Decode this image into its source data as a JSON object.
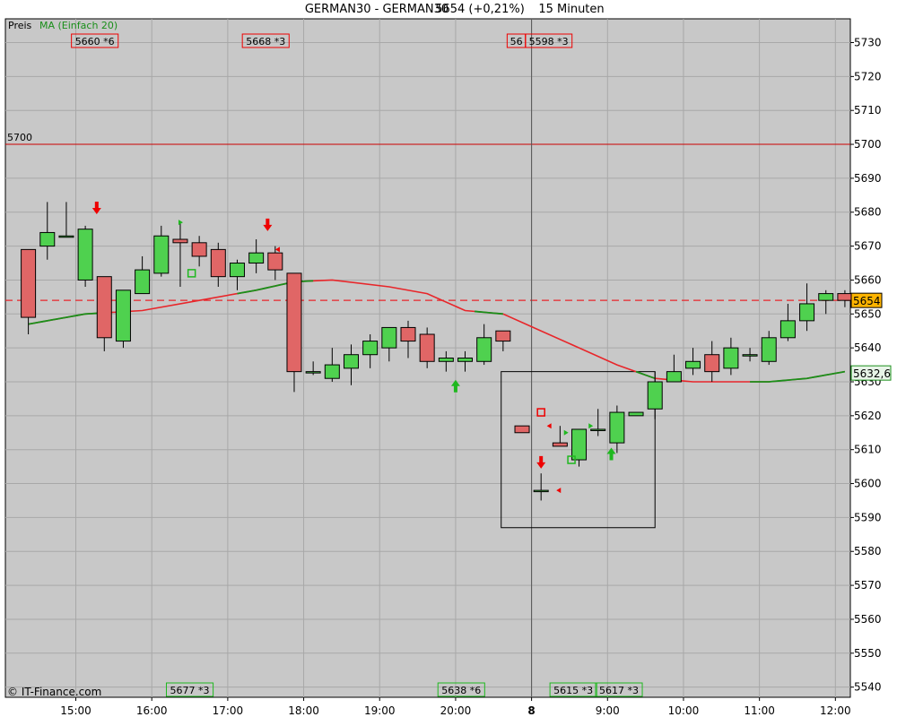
{
  "header": {
    "symbol": "GERMAN30 - GERMAN30",
    "price": "5654 (+0,21%)",
    "interval": "15 Minuten"
  },
  "legend": {
    "price_label": "Preis",
    "ma_label": "MA (Einfach 20)"
  },
  "copyright": "© IT-Finance.com",
  "chart_data": {
    "type": "candlestick",
    "ylim": [
      5537,
      5737
    ],
    "yticks": [
      5540,
      5550,
      5560,
      5570,
      5580,
      5590,
      5600,
      5610,
      5620,
      5630,
      5640,
      5650,
      5660,
      5670,
      5680,
      5690,
      5700,
      5710,
      5720,
      5730
    ],
    "xticks": [
      {
        "label": "15:00",
        "i": 2.5
      },
      {
        "label": "16:00",
        "i": 6.5
      },
      {
        "label": "17:00",
        "i": 10.5
      },
      {
        "label": "18:00",
        "i": 14.5
      },
      {
        "label": "19:00",
        "i": 18.5
      },
      {
        "label": "20:00",
        "i": 22.5
      },
      {
        "label": "8",
        "i": 26.5
      },
      {
        "label": "9:00",
        "i": 30.5
      },
      {
        "label": "10:00",
        "i": 34.5
      },
      {
        "label": "11:00",
        "i": 38.5
      },
      {
        "label": "12:00",
        "i": 42.5
      }
    ],
    "candles": [
      [
        5669,
        5669,
        5644,
        5649
      ],
      [
        5670,
        5683,
        5666,
        5674
      ],
      [
        5673,
        5683,
        5673,
        5673
      ],
      [
        5660,
        5676,
        5658,
        5675
      ],
      [
        5661,
        5661,
        5639,
        5643
      ],
      [
        5642,
        5657,
        5640,
        5657
      ],
      [
        5656,
        5667,
        5656,
        5663
      ],
      [
        5662,
        5676,
        5661,
        5673
      ],
      [
        5672,
        5677,
        5658,
        5671
      ],
      [
        5671,
        5673,
        5664,
        5667
      ],
      [
        5669,
        5671,
        5658,
        5661
      ],
      [
        5661,
        5666,
        5657,
        5665
      ],
      [
        5665,
        5672,
        5662,
        5668
      ],
      [
        5668,
        5670,
        5660,
        5663
      ],
      [
        5662,
        5662,
        5627,
        5633
      ],
      [
        5633,
        5636,
        5632,
        5633
      ],
      [
        5631,
        5640,
        5630,
        5635
      ],
      [
        5634,
        5641,
        5629,
        5638
      ],
      [
        5638,
        5644,
        5634,
        5642
      ],
      [
        5640,
        5646,
        5636,
        5646
      ],
      [
        5646,
        5648,
        5637,
        5642
      ],
      [
        5644,
        5646,
        5634,
        5636
      ],
      [
        5636,
        5639,
        5633,
        5637
      ],
      [
        5636,
        5639,
        5633,
        5637
      ],
      [
        5636,
        5647,
        5635,
        5643
      ],
      [
        5645,
        5645,
        5639,
        5642
      ],
      [
        5617,
        5617,
        5615,
        5615
      ],
      [
        5598,
        5603,
        5595,
        5598
      ],
      [
        5612,
        5617,
        5611,
        5611
      ],
      [
        5607,
        5615,
        5605,
        5616
      ],
      [
        5616,
        5622,
        5614,
        5616
      ],
      [
        5612,
        5623,
        5609,
        5621
      ],
      [
        5620,
        5621,
        5620,
        5621
      ],
      [
        5622,
        5633,
        5619,
        5630
      ],
      [
        5630,
        5638,
        5630,
        5633
      ],
      [
        5634,
        5640,
        5632,
        5636
      ],
      [
        5638,
        5642,
        5630,
        5633
      ],
      [
        5634,
        5643,
        5632,
        5640
      ],
      [
        5638,
        5640,
        5636,
        5638
      ],
      [
        5636,
        5645,
        5635,
        5643
      ],
      [
        5643,
        5653,
        5642,
        5648
      ],
      [
        5648,
        5659,
        5645,
        5653
      ],
      [
        5654,
        5657,
        5650,
        5656
      ],
      [
        5656,
        5657,
        5652,
        5654
      ]
    ],
    "ma": [
      [
        0,
        5647
      ],
      [
        3,
        5650
      ],
      [
        6,
        5651
      ],
      [
        9,
        5654
      ],
      [
        12,
        5657
      ],
      [
        14,
        5659.5
      ],
      [
        16,
        5660
      ],
      [
        19,
        5658
      ],
      [
        21,
        5656
      ],
      [
        23,
        5651
      ],
      [
        25,
        5650
      ],
      [
        27,
        5645
      ],
      [
        29,
        5640
      ],
      [
        31,
        5635
      ],
      [
        33,
        5631
      ],
      [
        35,
        5630
      ],
      [
        37,
        5630
      ],
      [
        39,
        5630
      ],
      [
        41,
        5631
      ],
      [
        43,
        5633
      ]
    ],
    "ma_green_idx": [
      [
        0,
        4
      ],
      [
        11,
        13
      ],
      [
        13,
        14
      ],
      [
        14,
        15
      ],
      [
        32,
        33
      ],
      [
        38,
        43
      ]
    ],
    "ma_green_extra": [
      [
        23.5,
        25.2
      ]
    ],
    "ref_line": {
      "value": 5700,
      "label": "5700"
    },
    "last_price": {
      "value": 5654,
      "label": "5654"
    },
    "ma_last": {
      "value": 5632.6,
      "label": "5632,6"
    },
    "vline_i": 26.5,
    "box": {
      "i0": 24.9,
      "i1": 33.0,
      "y0": 5587,
      "y1": 5633
    },
    "top_labels": [
      {
        "text": "5660",
        "suffix": "*6",
        "i": 3.5
      },
      {
        "text": "5668",
        "suffix": "*3",
        "i": 12.5
      },
      {
        "text": "56",
        "suffix": "",
        "i": 25.7
      },
      {
        "text": "5598",
        "suffix": "*3",
        "i": 27.4
      }
    ],
    "bottom_labels": [
      {
        "text": "5677",
        "suffix": "*3",
        "i": 8.5
      },
      {
        "text": "5638",
        "suffix": "*6",
        "i": 22.8
      },
      {
        "text": "5615",
        "suffix": "*3",
        "i": 28.7
      },
      {
        "text": "5617",
        "suffix": "*3",
        "i": 31.1
      }
    ],
    "arrows": [
      {
        "i": 3.6,
        "y": 5681,
        "dir": "down"
      },
      {
        "i": 12.6,
        "y": 5676,
        "dir": "down"
      },
      {
        "i": 27.0,
        "y": 5606,
        "dir": "down"
      },
      {
        "i": 22.5,
        "y": 5629,
        "dir": "up"
      },
      {
        "i": 30.7,
        "y": 5609,
        "dir": "up"
      }
    ],
    "squares": [
      {
        "i": 8.6,
        "y": 5662,
        "c": "green"
      },
      {
        "i": 27.0,
        "y": 5621,
        "c": "red"
      },
      {
        "i": 28.6,
        "y": 5607,
        "c": "green"
      }
    ],
    "markers": [
      {
        "i": 8.0,
        "y": 5677,
        "c": "green",
        "d": "right"
      },
      {
        "i": 13.1,
        "y": 5669,
        "c": "red",
        "d": "left"
      },
      {
        "i": 27.4,
        "y": 5617,
        "c": "red",
        "d": "left"
      },
      {
        "i": 27.9,
        "y": 5598,
        "c": "red",
        "d": "left"
      },
      {
        "i": 28.3,
        "y": 5615,
        "c": "green",
        "d": "right"
      },
      {
        "i": 29.6,
        "y": 5617,
        "c": "green",
        "d": "right"
      }
    ],
    "colors": {
      "bg": "#c8c8c8",
      "up": "#4fd14f",
      "down": "#e06666",
      "ma_red": "#e8262a",
      "ma_green": "#1a8f1a",
      "grid": "#a8a8a8",
      "ref": "#cc0000",
      "label_red": "#ee0000",
      "label_green": "#1fb81f",
      "price_tag": "#ffb400",
      "ma_tag": "#e8f4e8"
    }
  }
}
